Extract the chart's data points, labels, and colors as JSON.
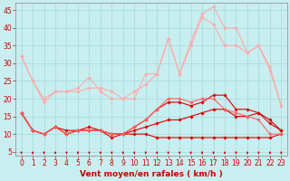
{
  "title": "",
  "xlabel": "Vent moyen/en rafales ( km/h )",
  "background_color": "#c8eef0",
  "grid_color": "#aadddd",
  "x": [
    0,
    1,
    2,
    3,
    4,
    5,
    6,
    7,
    8,
    9,
    10,
    11,
    12,
    13,
    14,
    15,
    16,
    17,
    18,
    19,
    20,
    21,
    22,
    23
  ],
  "series": [
    {
      "y": [
        16,
        11,
        10,
        12,
        11,
        11,
        12,
        11,
        9,
        10,
        10,
        10,
        9,
        9,
        9,
        9,
        9,
        9,
        9,
        9,
        9,
        9,
        9,
        10
      ],
      "color": "#dd0000",
      "linewidth": 0.8,
      "markersize": 1.8
    },
    {
      "y": [
        16,
        11,
        10,
        12,
        10,
        11,
        11,
        11,
        10,
        10,
        11,
        12,
        13,
        14,
        14,
        15,
        16,
        17,
        17,
        15,
        15,
        16,
        14,
        11
      ],
      "color": "#dd0000",
      "linewidth": 0.8,
      "markersize": 1.8
    },
    {
      "y": [
        16,
        11,
        10,
        12,
        10,
        11,
        11,
        11,
        10,
        10,
        12,
        14,
        17,
        19,
        19,
        18,
        19,
        21,
        21,
        17,
        17,
        16,
        13,
        11
      ],
      "color": "#dd0000",
      "linewidth": 0.8,
      "markersize": 1.8
    },
    {
      "y": [
        32,
        25,
        20,
        22,
        22,
        23,
        26,
        22,
        20,
        20,
        20,
        27,
        27,
        37,
        27,
        35,
        43,
        41,
        35,
        35,
        33,
        35,
        29,
        18
      ],
      "color": "#ffaaaa",
      "linewidth": 0.8,
      "markersize": 1.8
    },
    {
      "y": [
        32,
        25,
        19,
        22,
        22,
        22,
        23,
        23,
        22,
        20,
        22,
        24,
        27,
        37,
        27,
        36,
        44,
        46,
        40,
        40,
        33,
        35,
        28,
        18
      ],
      "color": "#ffaaaa",
      "linewidth": 0.8,
      "markersize": 1.8
    },
    {
      "y": [
        16,
        11,
        10,
        12,
        10,
        11,
        11,
        11,
        10,
        10,
        12,
        14,
        17,
        20,
        20,
        19,
        20,
        20,
        17,
        16,
        15,
        14,
        10,
        10
      ],
      "color": "#ff6666",
      "linewidth": 0.8,
      "markersize": 1.8
    }
  ],
  "xlim": [
    -0.5,
    23.5
  ],
  "ylim": [
    4,
    47
  ],
  "yticks": [
    5,
    10,
    15,
    20,
    25,
    30,
    35,
    40,
    45
  ],
  "xticks": [
    0,
    1,
    2,
    3,
    4,
    5,
    6,
    7,
    8,
    9,
    10,
    11,
    12,
    13,
    14,
    15,
    16,
    17,
    18,
    19,
    20,
    21,
    22,
    23
  ],
  "tick_fontsize": 5.5,
  "label_fontsize": 6.5
}
